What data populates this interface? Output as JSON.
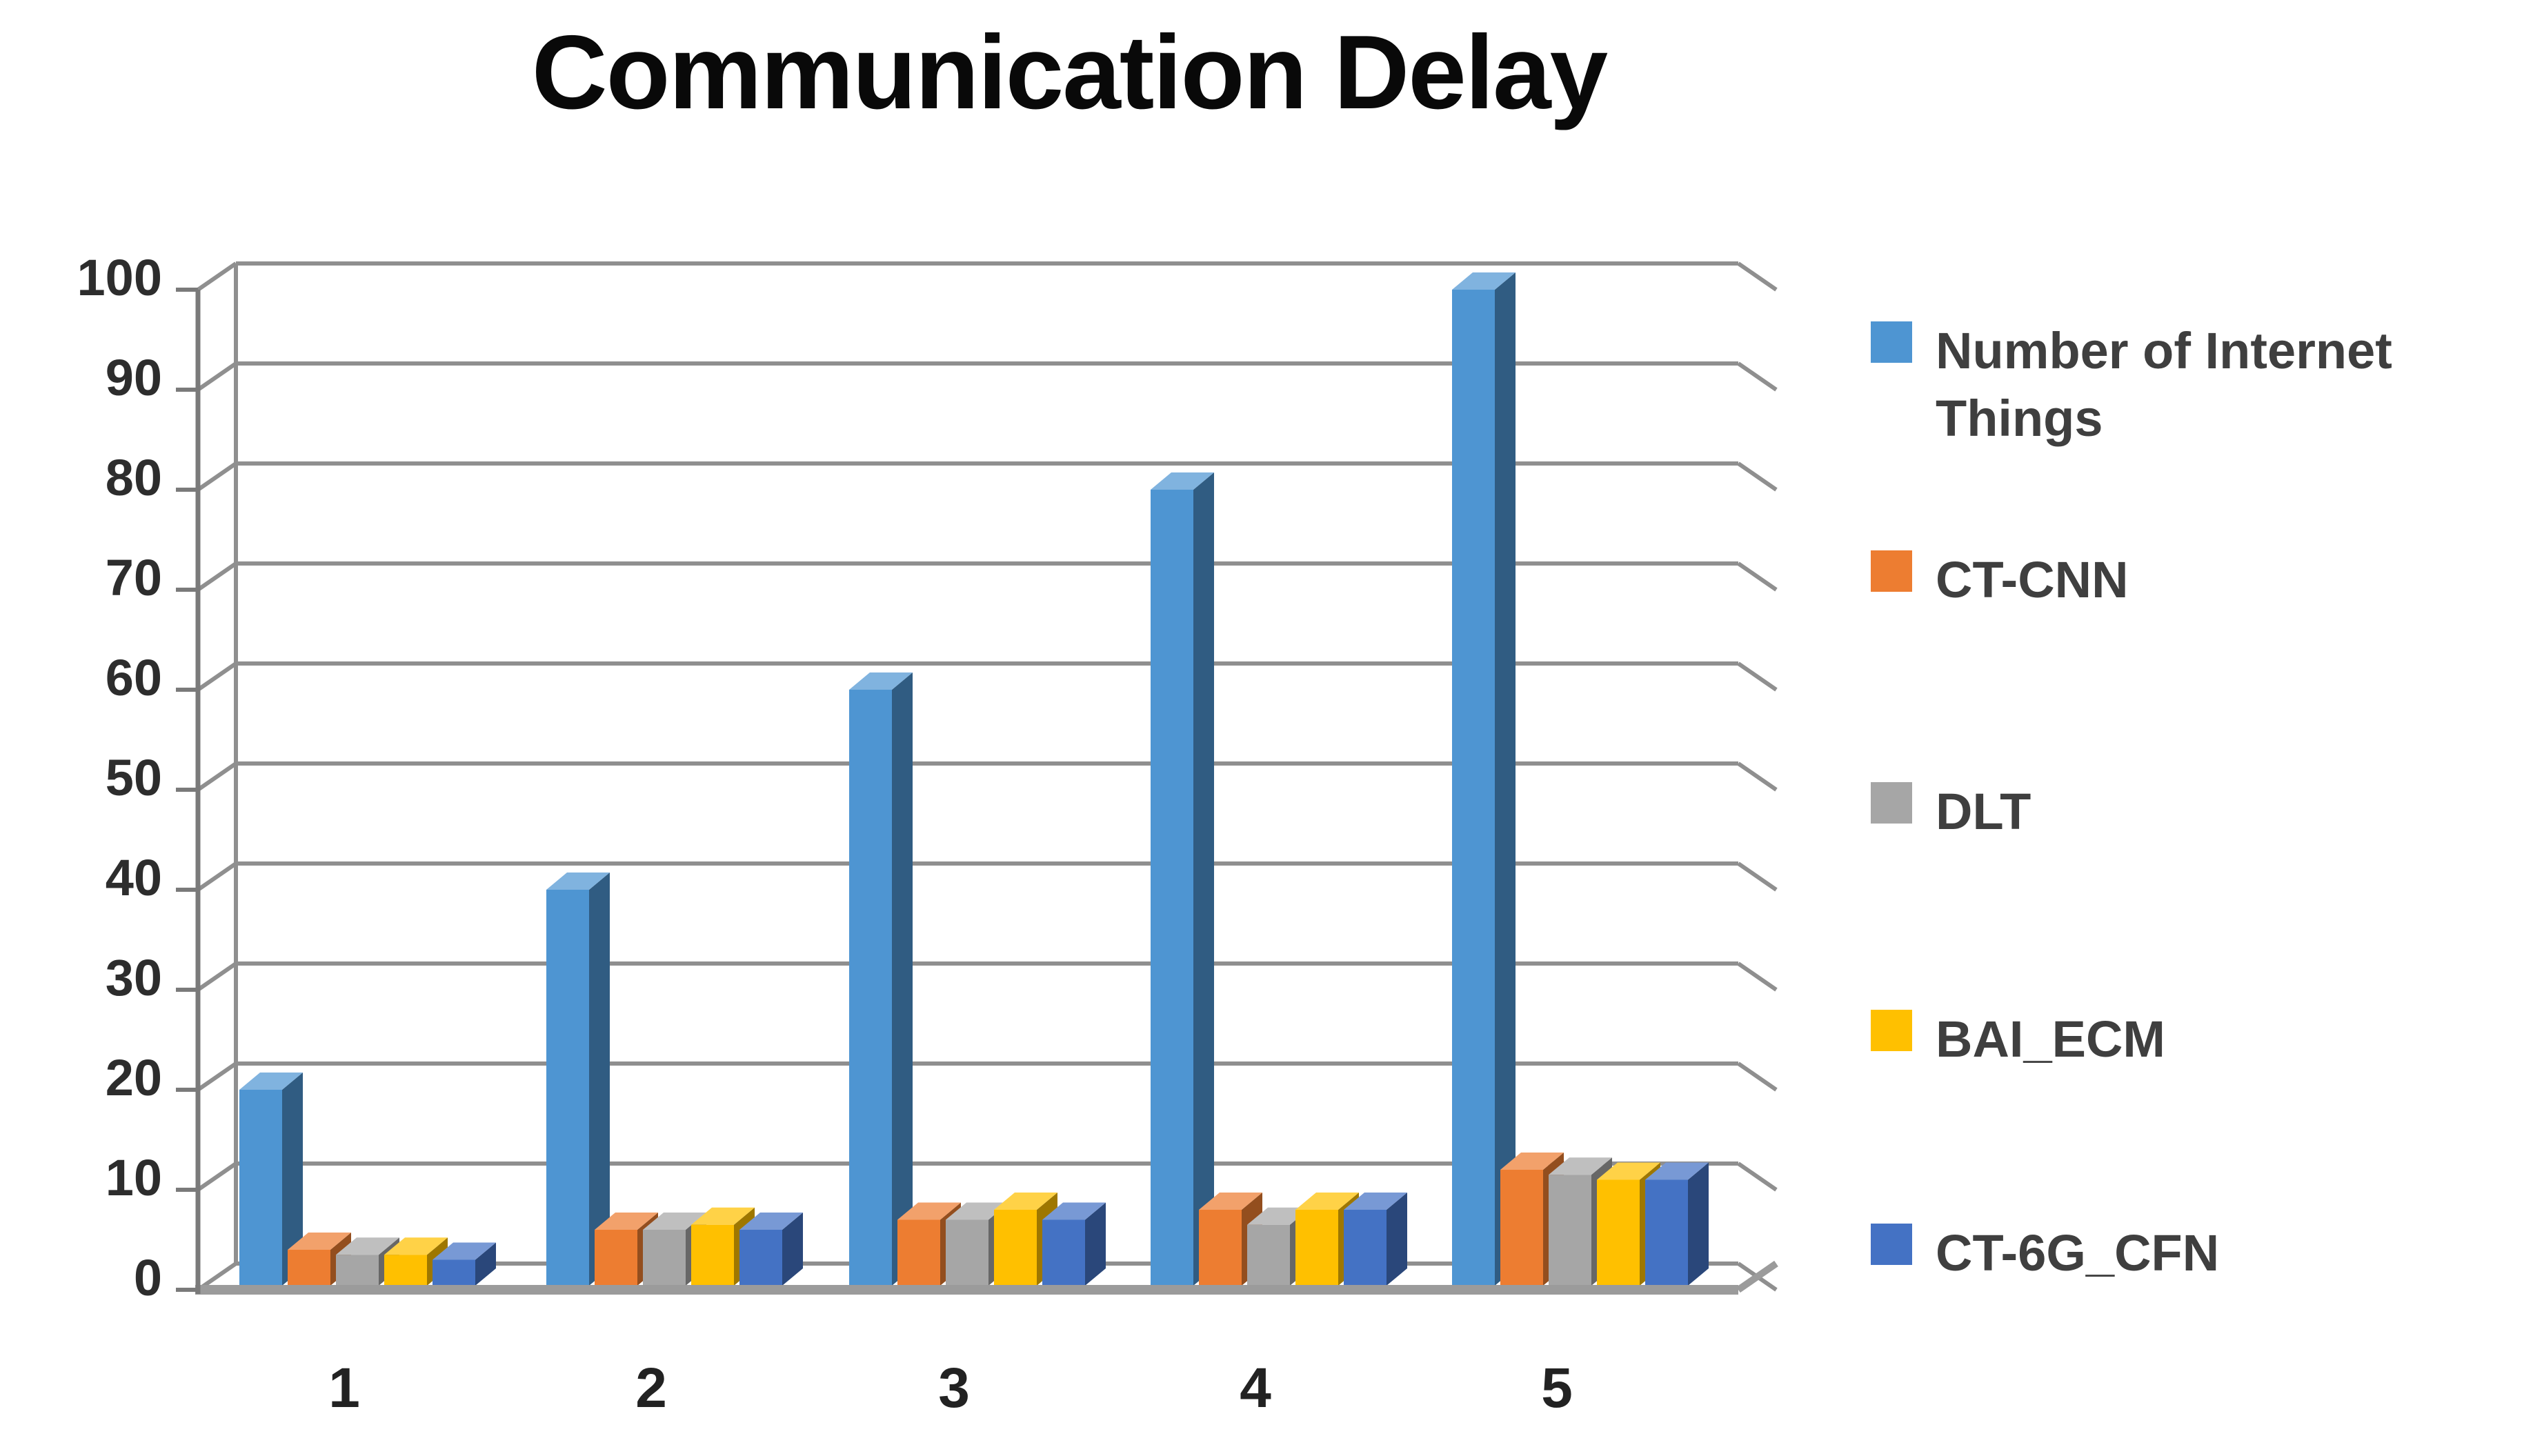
{
  "chart_data": {
    "type": "bar",
    "subtype": "3d-clustered-column",
    "title": "Communication Delay",
    "xlabel": "",
    "ylabel": "",
    "categories": [
      "1",
      "2",
      "3",
      "4",
      "5"
    ],
    "series": [
      {
        "name": "Number of Internet Things",
        "color": "#4E95D2",
        "values": [
          20,
          40,
          60,
          80,
          100
        ]
      },
      {
        "name": "CT-CNN",
        "color": "#ED7D31",
        "values": [
          4,
          6,
          7,
          8,
          12
        ]
      },
      {
        "name": "DLT",
        "color": "#A6A6A6",
        "values": [
          3.5,
          6,
          7,
          6.5,
          11.5
        ]
      },
      {
        "name": "BAI_ECM",
        "color": "#FFC000",
        "values": [
          3.5,
          6.5,
          8,
          8,
          11
        ]
      },
      {
        "name": "CT-6G_CFN",
        "color": "#4472C4",
        "values": [
          3,
          6,
          7,
          8,
          11
        ]
      }
    ],
    "ylim": [
      0,
      100
    ],
    "ytick_step": 10,
    "y_ticks": [
      "0",
      "10",
      "20",
      "30",
      "40",
      "50",
      "60",
      "70",
      "80",
      "90",
      "100"
    ],
    "grid": true,
    "legend_position": "right",
    "gridline_color": "#8F8F8F",
    "axis_color": "#7A7A7A",
    "title_color": "#090909",
    "background_color": "#FFFFFF"
  }
}
